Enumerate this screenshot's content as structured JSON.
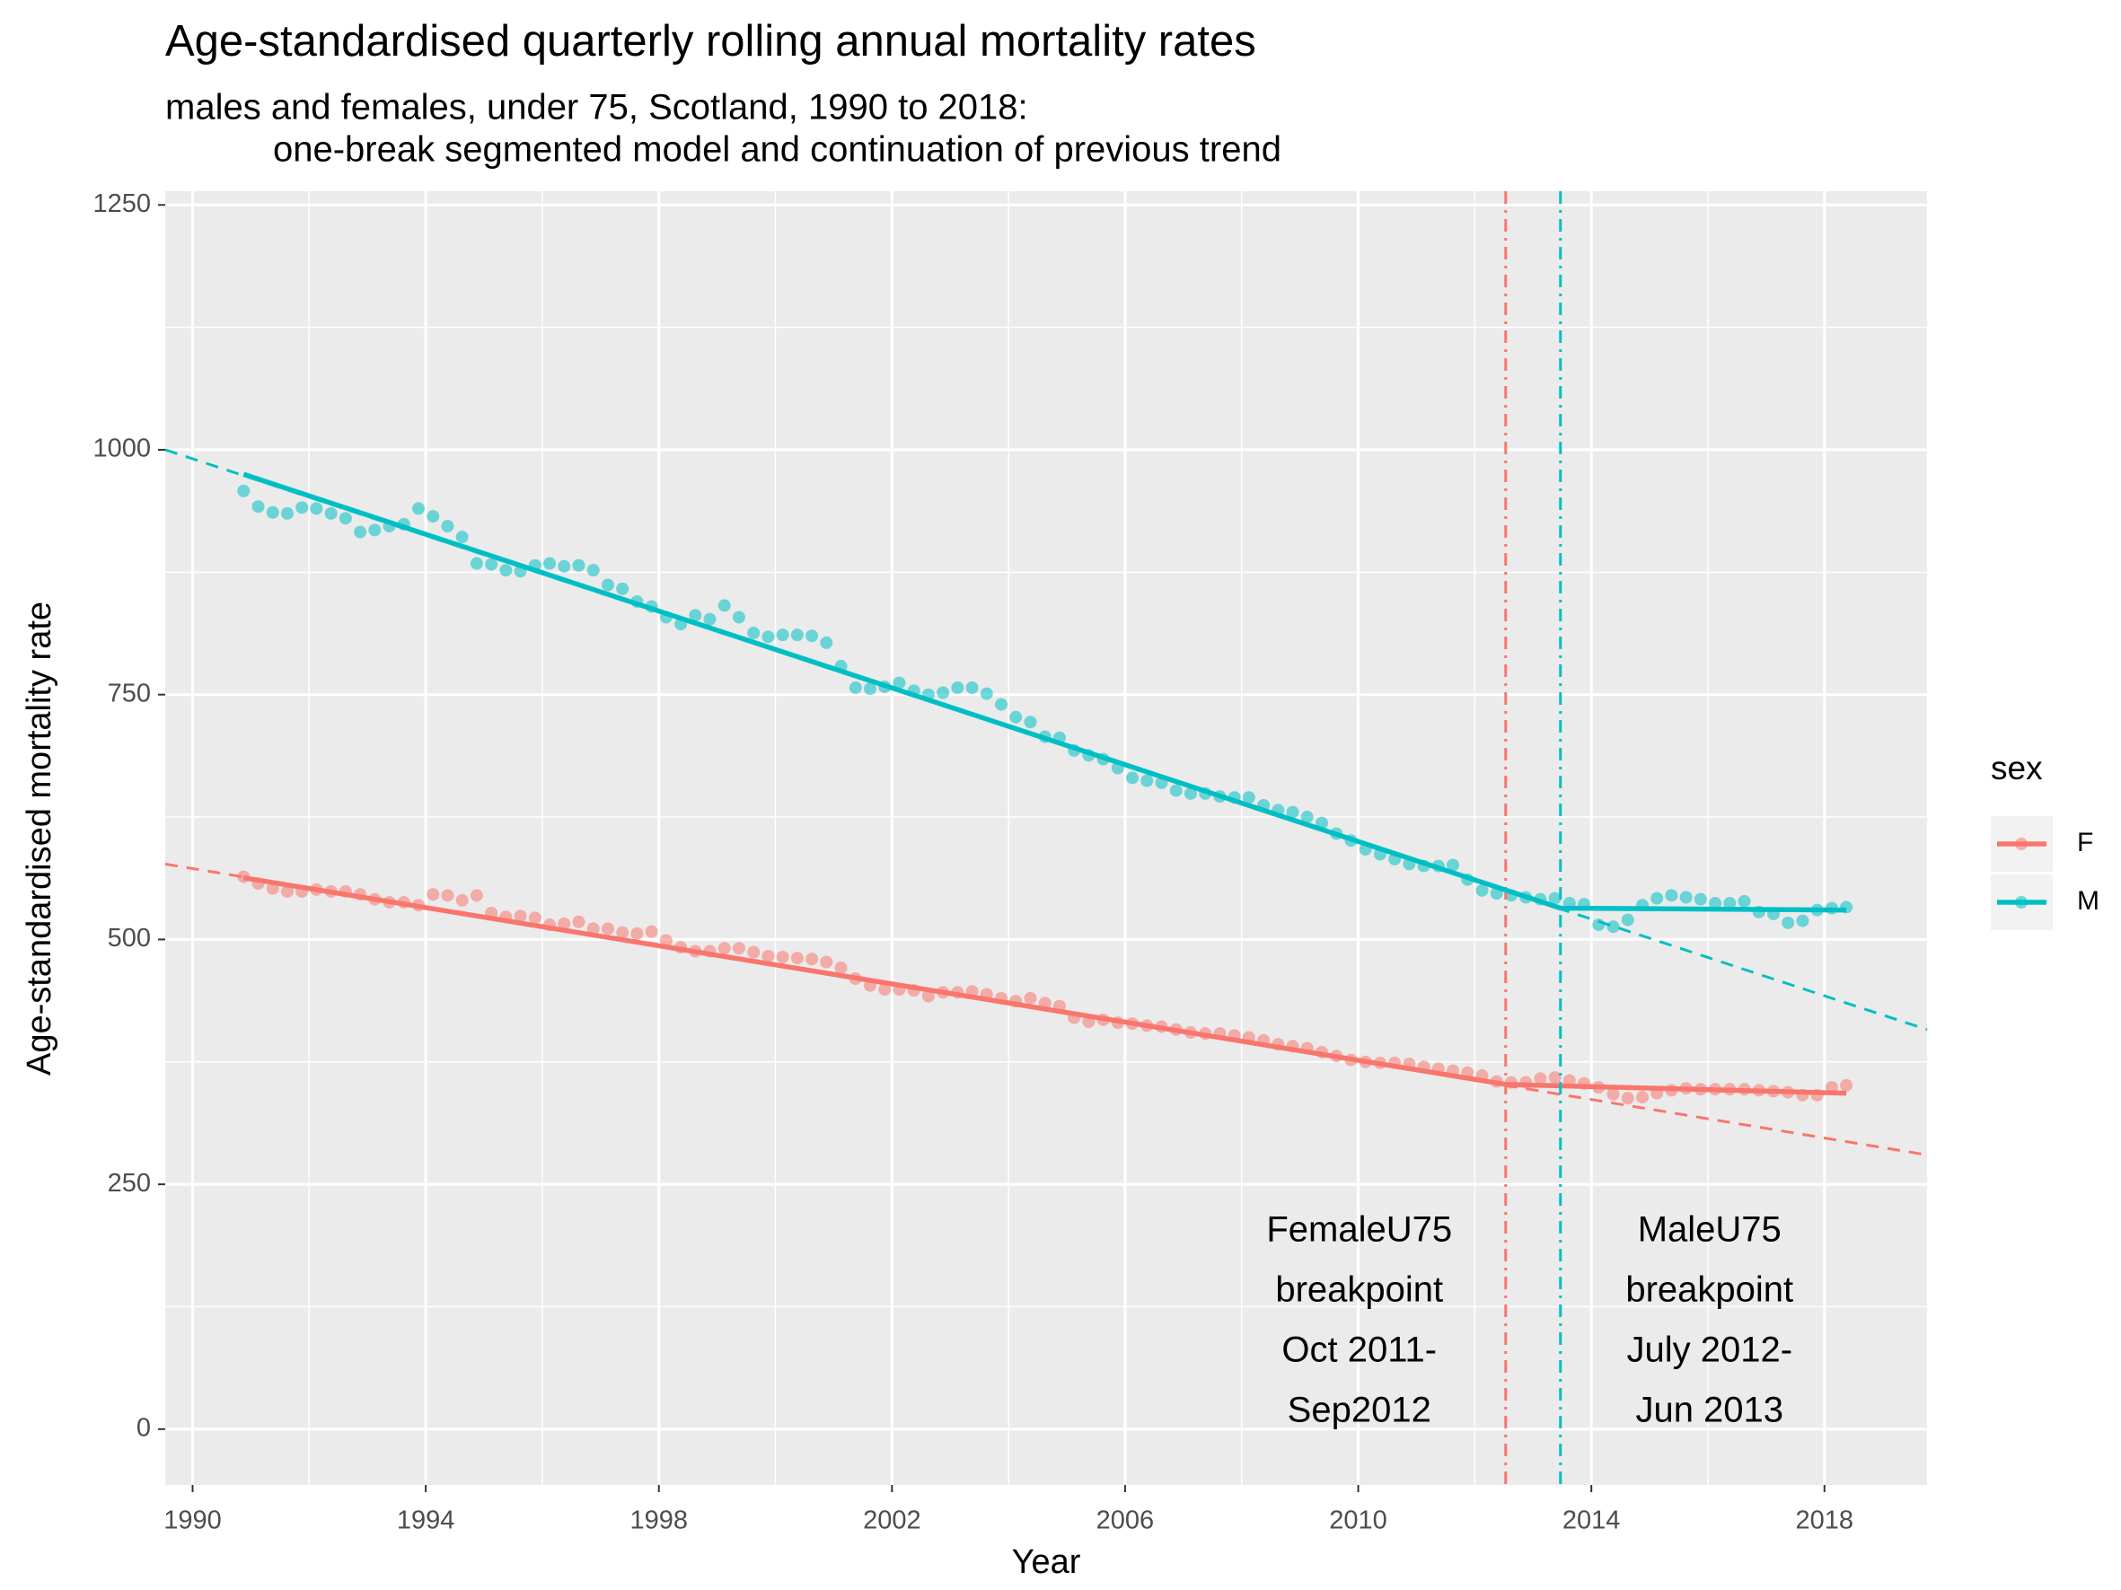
{
  "chart_data": {
    "type": "scatter",
    "title": "Age-standardised quarterly rolling annual mortality rates",
    "subtitle": [
      "males and females, under 75, Scotland, 1990 to 2018:",
      "one-break segmented model and continuation of previous trend"
    ],
    "x_label": "Year",
    "y_label": "Age-standardised mortality rate",
    "xlim": [
      1989.53,
      2019.76
    ],
    "ylim": [
      -57,
      1264
    ],
    "xticks": [
      1990,
      1994,
      1998,
      2002,
      2006,
      2010,
      2014,
      2018
    ],
    "yticks": [
      0,
      250,
      500,
      750,
      1000,
      1250
    ],
    "xminor": [
      1992,
      1996,
      2000,
      2004,
      2008,
      2012,
      2016
    ],
    "yminor": [
      125,
      375,
      625,
      875,
      1125
    ],
    "grid": true,
    "legend_title": "sex",
    "legend_position": "right",
    "x": [
      1990.875,
      1991.125,
      1991.375,
      1991.625,
      1991.875,
      1992.125,
      1992.375,
      1992.625,
      1992.875,
      1993.125,
      1993.375,
      1993.625,
      1993.875,
      1994.125,
      1994.375,
      1994.625,
      1994.875,
      1995.125,
      1995.375,
      1995.625,
      1995.875,
      1996.125,
      1996.375,
      1996.625,
      1996.875,
      1997.125,
      1997.375,
      1997.625,
      1997.875,
      1998.125,
      1998.375,
      1998.625,
      1998.875,
      1999.125,
      1999.375,
      1999.625,
      1999.875,
      2000.125,
      2000.375,
      2000.625,
      2000.875,
      2001.125,
      2001.375,
      2001.625,
      2001.875,
      2002.125,
      2002.375,
      2002.625,
      2002.875,
      2003.125,
      2003.375,
      2003.625,
      2003.875,
      2004.125,
      2004.375,
      2004.625,
      2004.875,
      2005.125,
      2005.375,
      2005.625,
      2005.875,
      2006.125,
      2006.375,
      2006.625,
      2006.875,
      2007.125,
      2007.375,
      2007.625,
      2007.875,
      2008.125,
      2008.375,
      2008.625,
      2008.875,
      2009.125,
      2009.375,
      2009.625,
      2009.875,
      2010.125,
      2010.375,
      2010.625,
      2010.875,
      2011.125,
      2011.375,
      2011.625,
      2011.875,
      2012.125,
      2012.375,
      2012.625,
      2012.875,
      2013.125,
      2013.375,
      2013.625,
      2013.875,
      2014.125,
      2014.375,
      2014.625,
      2014.875,
      2015.125,
      2015.375,
      2015.625,
      2015.875,
      2016.125,
      2016.375,
      2016.625,
      2016.875,
      2017.125,
      2017.375,
      2017.625,
      2017.875,
      2018.125,
      2018.375
    ],
    "series": [
      {
        "name": "F",
        "color": "#F8766D",
        "values": [
          564,
          557,
          552,
          549,
          549,
          551,
          549,
          549,
          546,
          541,
          538,
          538,
          535,
          546,
          545,
          540,
          545,
          527,
          523,
          524,
          522,
          515,
          516,
          518,
          511,
          511,
          507,
          506,
          508,
          499,
          492,
          488,
          488,
          491,
          491,
          487,
          483,
          482,
          481,
          480,
          477,
          471,
          460,
          453,
          449,
          449,
          448,
          442,
          446,
          446,
          447,
          444,
          440,
          437,
          440,
          435,
          432,
          420,
          416,
          418,
          415,
          414,
          412,
          411,
          408,
          405,
          404,
          404,
          402,
          400,
          397,
          393,
          391,
          389,
          385,
          381,
          377,
          375,
          374,
          374,
          373,
          370,
          368,
          366,
          364,
          361,
          355,
          354,
          354,
          358,
          359,
          356,
          353,
          349,
          342,
          338,
          339,
          343,
          346,
          348,
          347,
          347,
          347,
          347,
          346,
          345,
          344,
          341,
          341,
          349,
          351
        ],
        "fit": {
          "x": [
            1990.875,
            2012.53,
            2018.375
          ],
          "values": [
            563,
            352,
            343
          ]
        },
        "trend": {
          "x": [
            1989.53,
            2019.76
          ],
          "values": [
            577,
            280
          ]
        },
        "breakpoint": 2012.53,
        "annotation": [
          "FemaleU75",
          "breakpoint",
          "Oct 2011-",
          "Sep2012"
        ]
      },
      {
        "name": "M",
        "color": "#00BFC4",
        "values": [
          958,
          942,
          936,
          935,
          941,
          940,
          935,
          930,
          916,
          918,
          922,
          924,
          940,
          932,
          922,
          911,
          884,
          883,
          877,
          876,
          882,
          884,
          881,
          882,
          877,
          862,
          858,
          845,
          840,
          829,
          822,
          831,
          827,
          841,
          829,
          813,
          809,
          811,
          811,
          810,
          803,
          779,
          757,
          756,
          758,
          762,
          754,
          750,
          752,
          757,
          757,
          751,
          740,
          727,
          722,
          707,
          706,
          693,
          688,
          684,
          675,
          665,
          662,
          660,
          652,
          649,
          649,
          646,
          645,
          645,
          637,
          632,
          630,
          625,
          619,
          608,
          601,
          592,
          587,
          582,
          577,
          575,
          575,
          576,
          561,
          550,
          547,
          545,
          543,
          541,
          542,
          537,
          536,
          515,
          513,
          520,
          535,
          542,
          545,
          543,
          541,
          537,
          537,
          539,
          528,
          526,
          517,
          519,
          530,
          532,
          533
        ],
        "fit": {
          "x": [
            1990.875,
            2013.47,
            2018.375
          ],
          "values": [
            975,
            532,
            530
          ]
        },
        "trend": {
          "x": [
            1989.53,
            2019.76
          ],
          "values": [
            1000,
            408
          ]
        },
        "breakpoint": 2013.47,
        "annotation": [
          "MaleU75",
          "breakpoint",
          "July 2012-",
          "Jun 2013"
        ]
      }
    ]
  }
}
